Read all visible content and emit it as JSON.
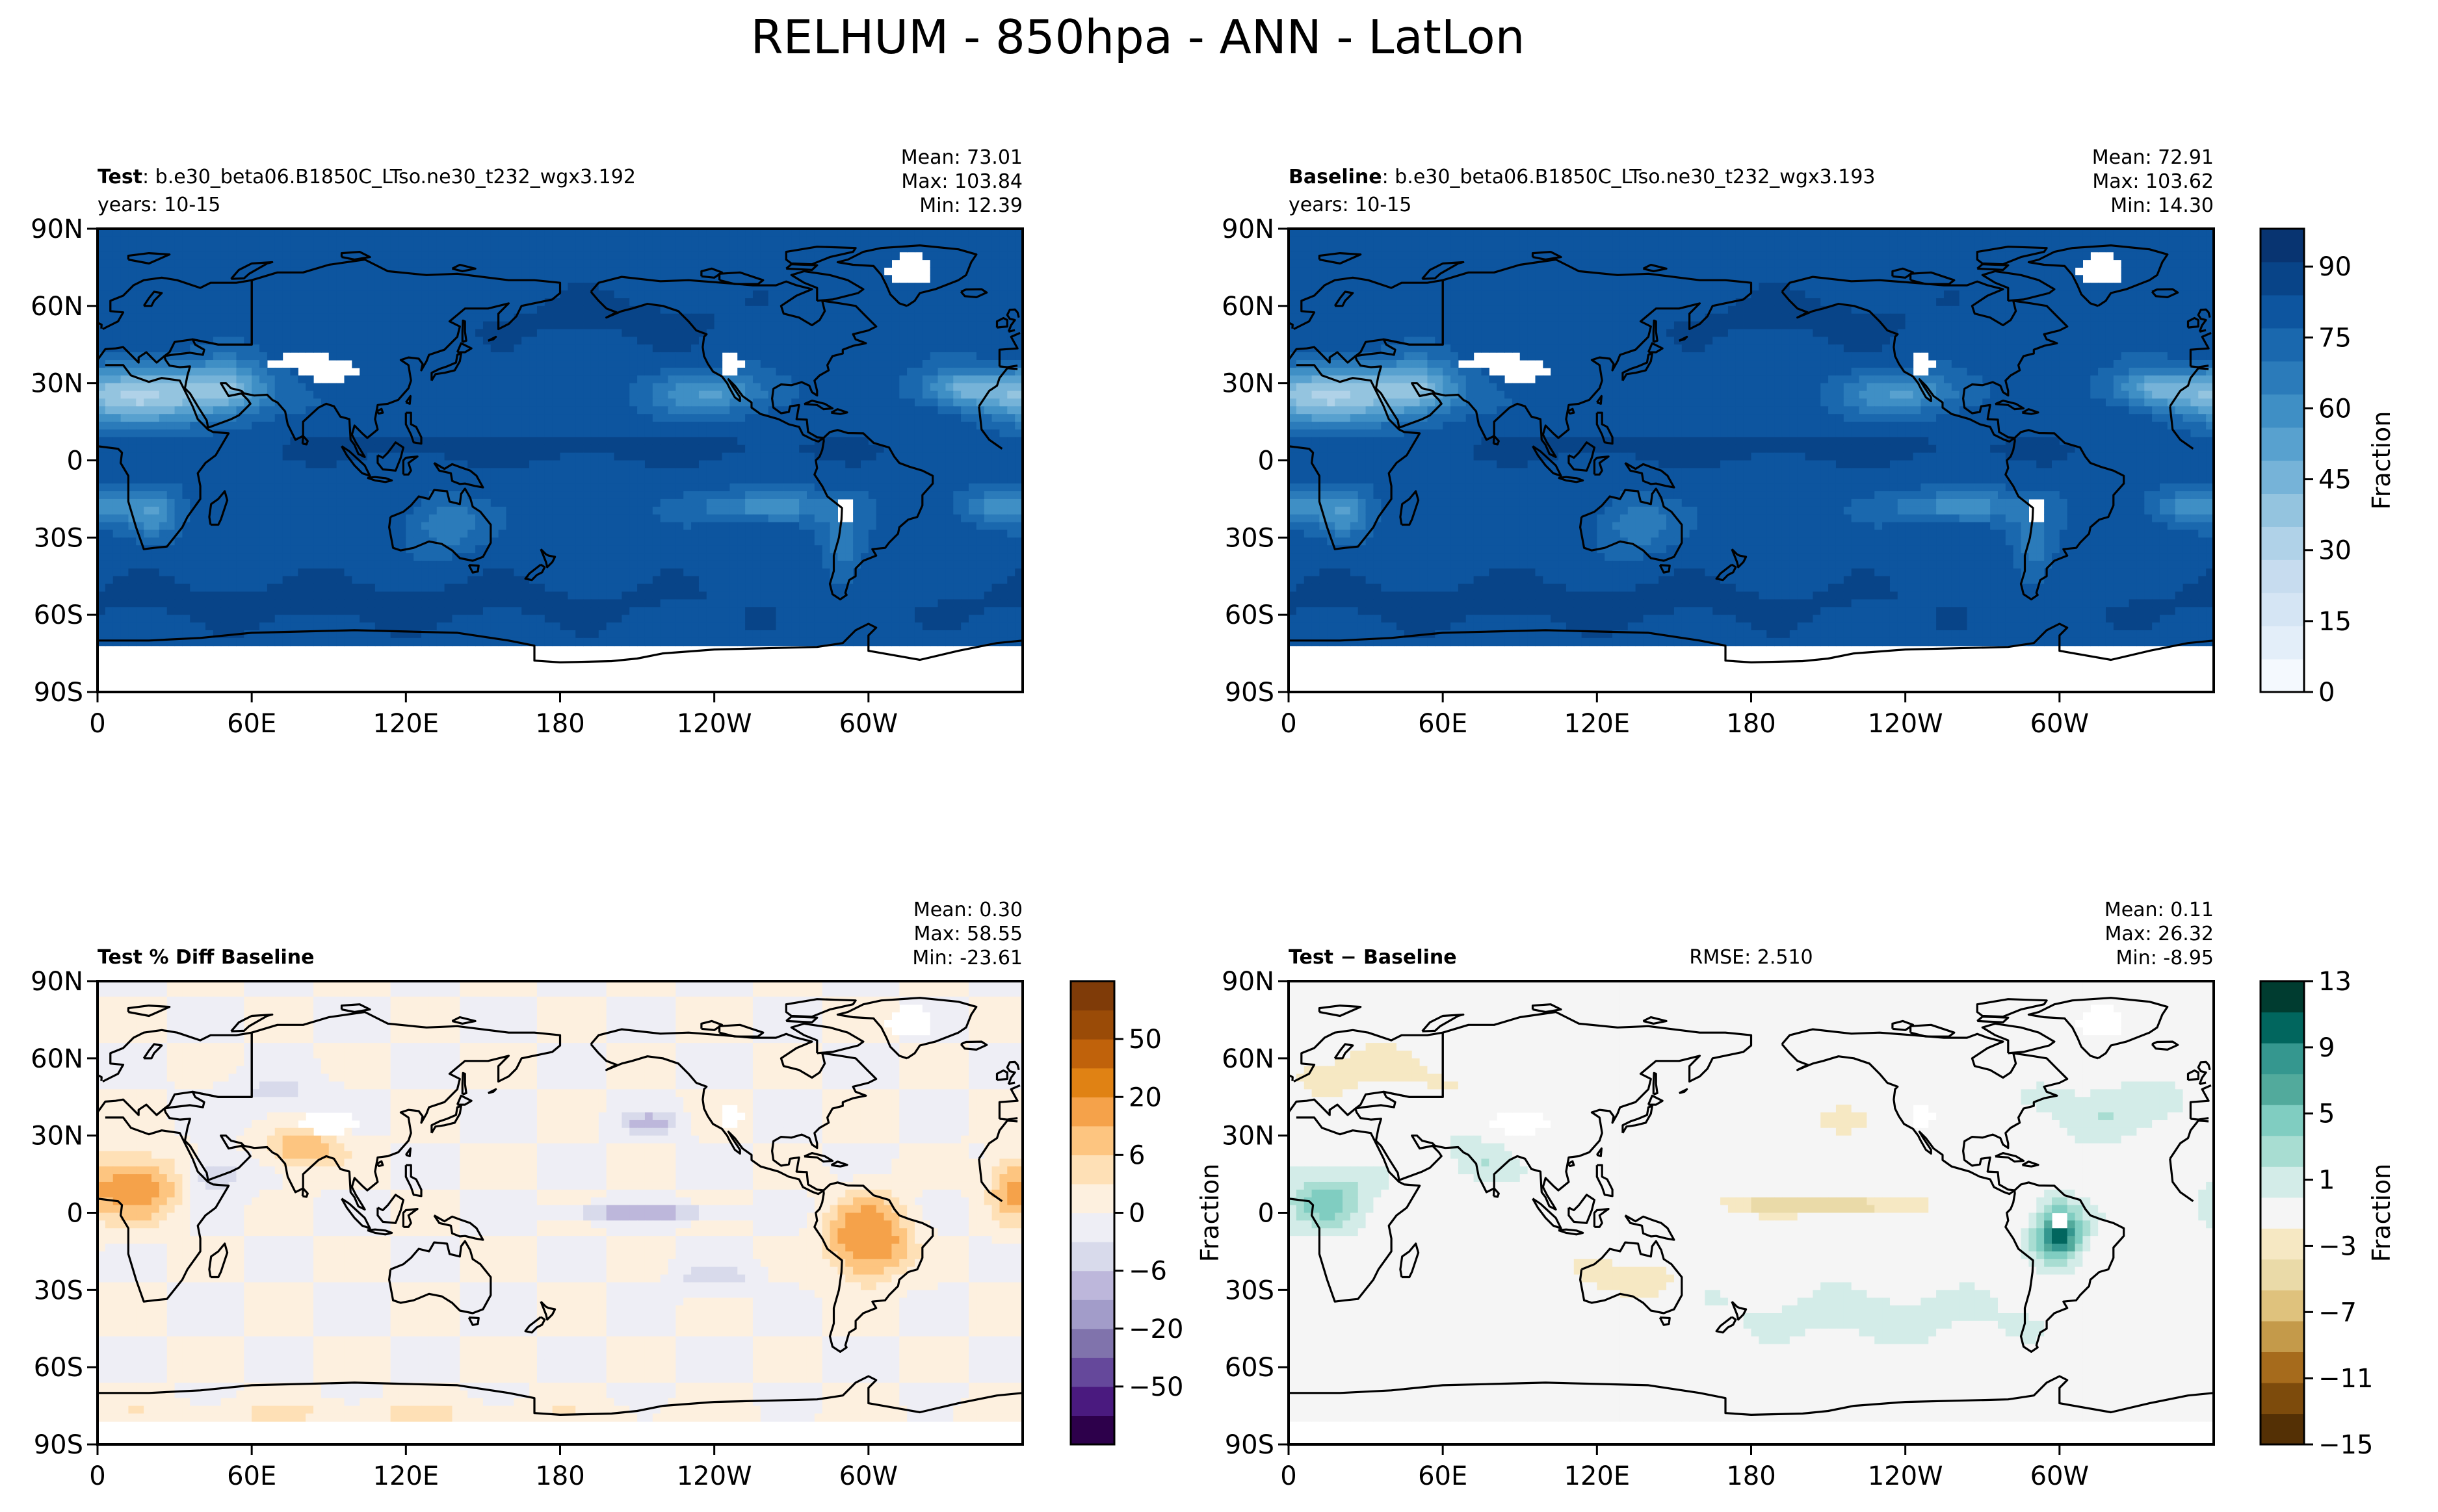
{
  "figure": {
    "title": "RELHUM - 850hpa - ANN - LatLon"
  },
  "colors": {
    "blues": [
      "#f4f9fe",
      "#e3eef9",
      "#d5e5f4",
      "#c7dcef",
      "#b0d2e8",
      "#94c4df",
      "#76b3d8",
      "#58a1cf",
      "#3f8fc5",
      "#2b7bba",
      "#1a68ae",
      "#0d559f",
      "#084488",
      "#083471"
    ],
    "puor": [
      "#2d004b",
      "#4a1a7f",
      "#65489b",
      "#8073ac",
      "#a29cc9",
      "#bdb7db",
      "#d8daeb",
      "#eeeef5",
      "#fdf0df",
      "#fee0b6",
      "#fdc580",
      "#f5a24a",
      "#e08214",
      "#c0620b",
      "#9a4b07",
      "#7f3b08"
    ],
    "brbg": [
      "#543005",
      "#7d4b0c",
      "#a66b1c",
      "#c49a4a",
      "#dfc27d",
      "#eadaa8",
      "#f6e8c3",
      "#f5f5f5",
      "#d3ece8",
      "#a8ddd2",
      "#80cdc1",
      "#52aa9c",
      "#35978f",
      "#01665e",
      "#003c30"
    ],
    "coast": "#000000"
  },
  "panels": [
    {
      "id": "test",
      "title_bold": "Test",
      "title_rest": ": b.e30_beta06.B1850C_LTso.ne30_t232_wgx3.192",
      "subtitle": "years: 10-15",
      "stats": [
        "Mean: 73.01",
        "Max: 103.84",
        "Min: 12.39"
      ],
      "rmse": "",
      "ylabel": "",
      "x_ticks": [
        "0",
        "60E",
        "120E",
        "180",
        "120W",
        "60W"
      ],
      "y_ticks": [
        "90N",
        "60N",
        "30N",
        "0",
        "30S",
        "60S",
        "90S"
      ]
    },
    {
      "id": "baseline",
      "title_bold": "Baseline",
      "title_rest": ": b.e30_beta06.B1850C_LTso.ne30_t232_wgx3.193",
      "subtitle": "years: 10-15",
      "stats": [
        "Mean: 72.91",
        "Max: 103.62",
        "Min: 14.30"
      ],
      "rmse": "",
      "ylabel": "",
      "x_ticks": [
        "0",
        "60E",
        "120E",
        "180",
        "120W",
        "60W"
      ],
      "y_ticks": [
        "90N",
        "60N",
        "30N",
        "0",
        "30S",
        "60S",
        "90S"
      ]
    },
    {
      "id": "pctdiff",
      "title_bold": "Test % Diff Baseline",
      "title_rest": "",
      "subtitle": "",
      "stats": [
        "Mean:  0.30",
        "Max: 58.55",
        "Min: -23.61"
      ],
      "rmse": "",
      "ylabel": "",
      "x_ticks": [
        "0",
        "60E",
        "120E",
        "180",
        "120W",
        "60W"
      ],
      "y_ticks": [
        "90N",
        "60N",
        "30N",
        "0",
        "30S",
        "60S",
        "90S"
      ]
    },
    {
      "id": "diff",
      "title_bold": "Test − Baseline",
      "title_rest": "",
      "subtitle": "",
      "stats": [
        "Mean:  0.11",
        "Max: 26.32",
        "Min: -8.95"
      ],
      "rmse": "RMSE: 2.510",
      "ylabel": "Fraction",
      "x_ticks": [
        "0",
        "60E",
        "120E",
        "180",
        "120W",
        "60W"
      ],
      "y_ticks": [
        "90N",
        "60N",
        "30N",
        "0",
        "30S",
        "60S",
        "90S"
      ]
    }
  ],
  "colorbars": [
    {
      "id": "top",
      "label": "Fraction",
      "ticks": [
        "0",
        "15",
        "30",
        "45",
        "60",
        "75",
        "90"
      ]
    },
    {
      "id": "pctdiff",
      "label": "",
      "ticks": [
        "−50",
        "−20",
        "−6",
        "0",
        "6",
        "20",
        "50"
      ]
    },
    {
      "id": "diff",
      "label": "Fraction",
      "ticks": [
        "−15",
        "−11",
        "−7",
        "−3",
        "1",
        "5",
        "9",
        "13"
      ]
    }
  ],
  "chart_data": [
    {
      "type": "heatmap",
      "title": "Test: b.e30_beta06.B1850C_LTso.ne30_t232_wgx3.192",
      "subtitle": "years: 10-15",
      "variable": "RELHUM 850hpa ANN",
      "projection": "lat-lon",
      "x_ticks": [
        "0",
        "60E",
        "120E",
        "180",
        "120W",
        "60W"
      ],
      "y_ticks": [
        "90N",
        "60N",
        "30N",
        "0",
        "30S",
        "60S",
        "90S"
      ],
      "xlim": [
        0,
        360
      ],
      "ylim": [
        -90,
        90
      ],
      "stats": {
        "mean": 73.01,
        "max": 103.84,
        "min": 12.39
      },
      "colorbar": {
        "label": "Fraction",
        "range": [
          0,
          100
        ],
        "ticks": [
          0,
          15,
          30,
          45,
          60,
          75,
          90
        ],
        "colormap": "Blues"
      }
    },
    {
      "type": "heatmap",
      "title": "Baseline: b.e30_beta06.B1850C_LTso.ne30_t232_wgx3.193",
      "subtitle": "years: 10-15",
      "variable": "RELHUM 850hpa ANN",
      "projection": "lat-lon",
      "x_ticks": [
        "0",
        "60E",
        "120E",
        "180",
        "120W",
        "60W"
      ],
      "y_ticks": [
        "90N",
        "60N",
        "30N",
        "0",
        "30S",
        "60S",
        "90S"
      ],
      "xlim": [
        0,
        360
      ],
      "ylim": [
        -90,
        90
      ],
      "stats": {
        "mean": 72.91,
        "max": 103.62,
        "min": 14.3
      },
      "colorbar": {
        "label": "Fraction",
        "range": [
          0,
          100
        ],
        "ticks": [
          0,
          15,
          30,
          45,
          60,
          75,
          90
        ],
        "colormap": "Blues"
      }
    },
    {
      "type": "heatmap",
      "title": "Test % Diff Baseline",
      "projection": "lat-lon",
      "x_ticks": [
        "0",
        "60E",
        "120E",
        "180",
        "120W",
        "60W"
      ],
      "y_ticks": [
        "90N",
        "60N",
        "30N",
        "0",
        "30S",
        "60S",
        "90S"
      ],
      "xlim": [
        0,
        360
      ],
      "ylim": [
        -90,
        90
      ],
      "stats": {
        "mean": 0.3,
        "max": 58.55,
        "min": -23.61
      },
      "colorbar": {
        "ticks": [
          -50,
          -20,
          -6,
          0,
          6,
          20,
          50
        ],
        "colormap": "PuOr_r"
      }
    },
    {
      "type": "heatmap",
      "title": "Test − Baseline",
      "projection": "lat-lon",
      "x_ticks": [
        "0",
        "60E",
        "120E",
        "180",
        "120W",
        "60W"
      ],
      "y_ticks": [
        "90N",
        "60N",
        "30N",
        "0",
        "30S",
        "60S",
        "90S"
      ],
      "xlim": [
        0,
        360
      ],
      "ylim": [
        -90,
        90
      ],
      "ylabel": "Fraction",
      "stats": {
        "mean": 0.11,
        "max": 26.32,
        "min": -8.95,
        "rmse": 2.51
      },
      "colorbar": {
        "label": "Fraction",
        "range": [
          -15,
          13
        ],
        "ticks": [
          -15,
          -11,
          -7,
          -3,
          1,
          5,
          9,
          13
        ],
        "colormap": "BrBG"
      }
    }
  ]
}
